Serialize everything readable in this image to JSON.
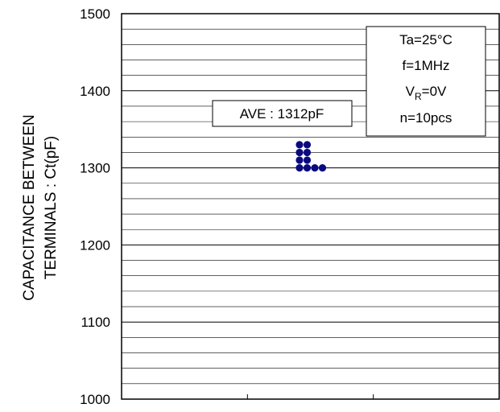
{
  "chart_data": {
    "type": "scatter",
    "ylabel_lines": [
      "CAPACITANCE BETWEEN",
      "TERMINALS : Ct(pF)"
    ],
    "ylim": [
      1000,
      1500
    ],
    "y_ticks": [
      "1000",
      "1100",
      "1200",
      "1300",
      "1400",
      "1500"
    ],
    "grid": true,
    "points": [
      {
        "x": 1,
        "y": 1300
      },
      {
        "x": 1,
        "y": 1310
      },
      {
        "x": 1,
        "y": 1320
      },
      {
        "x": 1,
        "y": 1330
      },
      {
        "x": 2,
        "y": 1300
      },
      {
        "x": 2,
        "y": 1310
      },
      {
        "x": 2,
        "y": 1320
      },
      {
        "x": 2,
        "y": 1330
      },
      {
        "x": 3,
        "y": 1300
      },
      {
        "x": 4,
        "y": 1300
      }
    ],
    "point_color": "#0a0a80",
    "average_label": "AVE : 1312pF",
    "conditions": {
      "ta": "Ta=25°C",
      "freq": "f=1MHz",
      "vr_prefix": "V",
      "vr_sub": "R",
      "vr_suffix": "=0V",
      "n": "n=10pcs"
    }
  }
}
